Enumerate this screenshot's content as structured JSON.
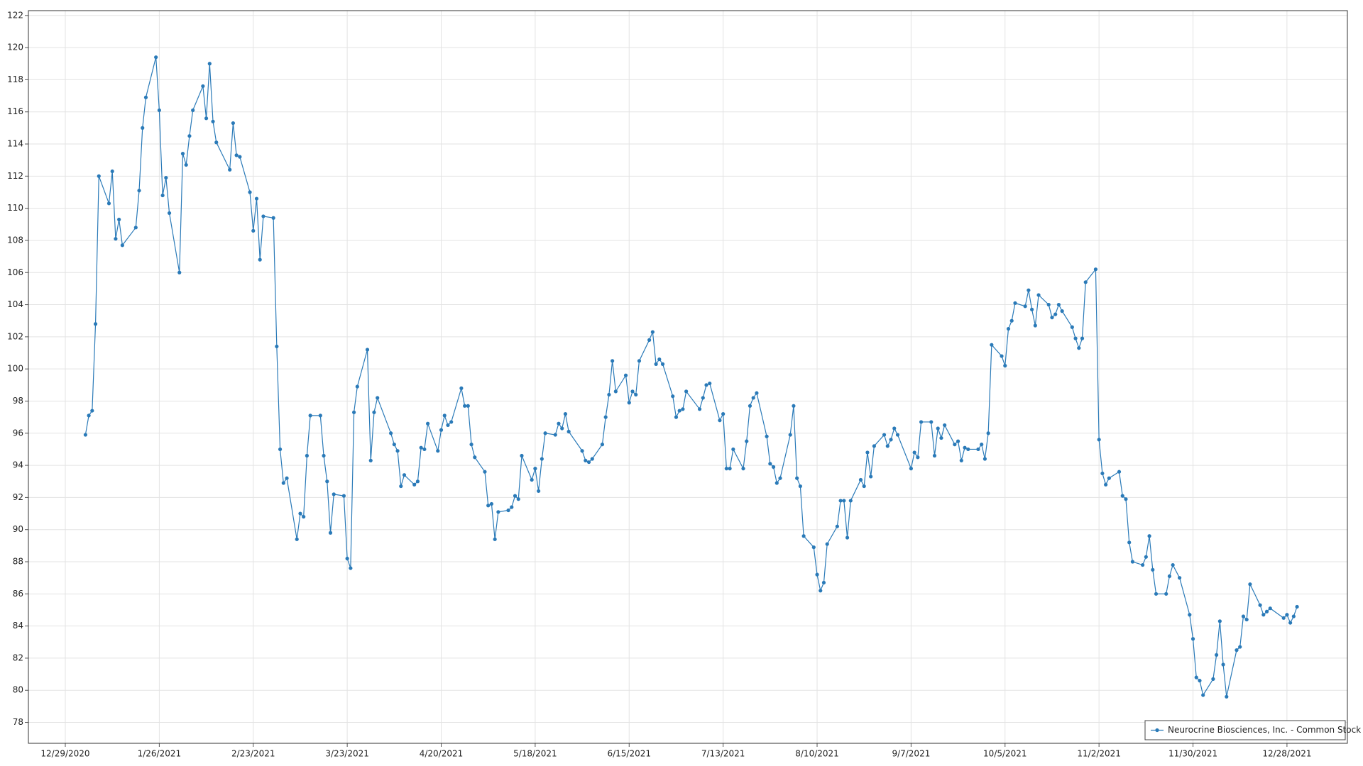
{
  "chart_data": {
    "type": "line",
    "x": [
      "2021-01-04",
      "2021-01-05",
      "2021-01-06",
      "2021-01-07",
      "2021-01-08",
      "2021-01-11",
      "2021-01-12",
      "2021-01-13",
      "2021-01-14",
      "2021-01-15",
      "2021-01-19",
      "2021-01-20",
      "2021-01-21",
      "2021-01-22",
      "2021-01-25",
      "2021-01-26",
      "2021-01-27",
      "2021-01-28",
      "2021-01-29",
      "2021-02-01",
      "2021-02-02",
      "2021-02-03",
      "2021-02-04",
      "2021-02-05",
      "2021-02-08",
      "2021-02-09",
      "2021-02-10",
      "2021-02-11",
      "2021-02-12",
      "2021-02-16",
      "2021-02-17",
      "2021-02-18",
      "2021-02-19",
      "2021-02-22",
      "2021-02-23",
      "2021-02-24",
      "2021-02-25",
      "2021-02-26",
      "2021-03-01",
      "2021-03-02",
      "2021-03-03",
      "2021-03-04",
      "2021-03-05",
      "2021-03-08",
      "2021-03-09",
      "2021-03-10",
      "2021-03-11",
      "2021-03-12",
      "2021-03-15",
      "2021-03-16",
      "2021-03-17",
      "2021-03-18",
      "2021-03-19",
      "2021-03-22",
      "2021-03-23",
      "2021-03-24",
      "2021-03-25",
      "2021-03-26",
      "2021-03-29",
      "2021-03-30",
      "2021-03-31",
      "2021-04-01",
      "2021-04-05",
      "2021-04-06",
      "2021-04-07",
      "2021-04-08",
      "2021-04-09",
      "2021-04-12",
      "2021-04-13",
      "2021-04-14",
      "2021-04-15",
      "2021-04-16",
      "2021-04-19",
      "2021-04-20",
      "2021-04-21",
      "2021-04-22",
      "2021-04-23",
      "2021-04-26",
      "2021-04-27",
      "2021-04-28",
      "2021-04-29",
      "2021-04-30",
      "2021-05-03",
      "2021-05-04",
      "2021-05-05",
      "2021-05-06",
      "2021-05-07",
      "2021-05-10",
      "2021-05-11",
      "2021-05-12",
      "2021-05-13",
      "2021-05-14",
      "2021-05-17",
      "2021-05-18",
      "2021-05-19",
      "2021-05-20",
      "2021-05-21",
      "2021-05-24",
      "2021-05-25",
      "2021-05-26",
      "2021-05-27",
      "2021-05-28",
      "2021-06-01",
      "2021-06-02",
      "2021-06-03",
      "2021-06-04",
      "2021-06-07",
      "2021-06-08",
      "2021-06-09",
      "2021-06-10",
      "2021-06-11",
      "2021-06-14",
      "2021-06-15",
      "2021-06-16",
      "2021-06-17",
      "2021-06-18",
      "2021-06-21",
      "2021-06-22",
      "2021-06-23",
      "2021-06-24",
      "2021-06-25",
      "2021-06-28",
      "2021-06-29",
      "2021-06-30",
      "2021-07-01",
      "2021-07-02",
      "2021-07-06",
      "2021-07-07",
      "2021-07-08",
      "2021-07-09",
      "2021-07-12",
      "2021-07-13",
      "2021-07-14",
      "2021-07-15",
      "2021-07-16",
      "2021-07-19",
      "2021-07-20",
      "2021-07-21",
      "2021-07-22",
      "2021-07-23",
      "2021-07-26",
      "2021-07-27",
      "2021-07-28",
      "2021-07-29",
      "2021-07-30",
      "2021-08-02",
      "2021-08-03",
      "2021-08-04",
      "2021-08-05",
      "2021-08-06",
      "2021-08-09",
      "2021-08-10",
      "2021-08-11",
      "2021-08-12",
      "2021-08-13",
      "2021-08-16",
      "2021-08-17",
      "2021-08-18",
      "2021-08-19",
      "2021-08-20",
      "2021-08-23",
      "2021-08-24",
      "2021-08-25",
      "2021-08-26",
      "2021-08-27",
      "2021-08-30",
      "2021-08-31",
      "2021-09-01",
      "2021-09-02",
      "2021-09-03",
      "2021-09-07",
      "2021-09-08",
      "2021-09-09",
      "2021-09-10",
      "2021-09-13",
      "2021-09-14",
      "2021-09-15",
      "2021-09-16",
      "2021-09-17",
      "2021-09-20",
      "2021-09-21",
      "2021-09-22",
      "2021-09-23",
      "2021-09-24",
      "2021-09-27",
      "2021-09-28",
      "2021-09-29",
      "2021-09-30",
      "2021-10-01",
      "2021-10-04",
      "2021-10-05",
      "2021-10-06",
      "2021-10-07",
      "2021-10-08",
      "2021-10-11",
      "2021-10-12",
      "2021-10-13",
      "2021-10-14",
      "2021-10-15",
      "2021-10-18",
      "2021-10-19",
      "2021-10-20",
      "2021-10-21",
      "2021-10-22",
      "2021-10-25",
      "2021-10-26",
      "2021-10-27",
      "2021-10-28",
      "2021-10-29",
      "2021-11-01",
      "2021-11-02",
      "2021-11-03",
      "2021-11-04",
      "2021-11-05",
      "2021-11-08",
      "2021-11-09",
      "2021-11-10",
      "2021-11-11",
      "2021-11-12",
      "2021-11-15",
      "2021-11-16",
      "2021-11-17",
      "2021-11-18",
      "2021-11-19",
      "2021-11-22",
      "2021-11-23",
      "2021-11-24",
      "2021-11-26",
      "2021-11-29",
      "2021-11-30",
      "2021-12-01",
      "2021-12-02",
      "2021-12-03",
      "2021-12-06",
      "2021-12-07",
      "2021-12-08",
      "2021-12-09",
      "2021-12-10",
      "2021-12-13",
      "2021-12-14",
      "2021-12-15",
      "2021-12-16",
      "2021-12-17",
      "2021-12-20",
      "2021-12-21",
      "2021-12-22",
      "2021-12-23",
      "2021-12-27",
      "2021-12-28",
      "2021-12-29",
      "2021-12-30",
      "2021-12-31"
    ],
    "series": [
      {
        "name": "Neurocrine Biosciences, Inc. - Common Stock",
        "color": "#2a7ab8",
        "values": [
          95.9,
          97.1,
          97.4,
          102.8,
          112.0,
          110.3,
          112.3,
          108.1,
          109.3,
          107.7,
          108.8,
          111.1,
          115.0,
          116.9,
          119.4,
          116.1,
          110.8,
          111.9,
          109.7,
          106.0,
          113.4,
          112.7,
          114.5,
          116.1,
          117.6,
          115.6,
          119.0,
          115.4,
          114.1,
          112.4,
          115.3,
          113.3,
          113.2,
          111.0,
          108.6,
          110.6,
          106.8,
          109.5,
          109.4,
          101.4,
          95.0,
          92.9,
          93.2,
          89.4,
          91.0,
          90.8,
          94.6,
          97.1,
          97.1,
          94.6,
          93.0,
          89.8,
          92.2,
          92.1,
          88.2,
          87.6,
          97.3,
          98.9,
          101.2,
          94.3,
          97.3,
          98.2,
          96.0,
          95.3,
          94.9,
          92.7,
          93.4,
          92.8,
          93.0,
          95.1,
          95.0,
          96.6,
          94.9,
          96.2,
          97.1,
          96.5,
          96.7,
          98.8,
          97.7,
          97.7,
          95.3,
          94.5,
          93.6,
          91.5,
          91.6,
          89.4,
          91.1,
          91.2,
          91.4,
          92.1,
          91.9,
          94.6,
          93.1,
          93.8,
          92.4,
          94.4,
          96.0,
          95.9,
          96.6,
          96.3,
          97.2,
          96.1,
          94.9,
          94.3,
          94.2,
          94.4,
          95.3,
          97.0,
          98.4,
          100.5,
          98.6,
          99.6,
          97.9,
          98.6,
          98.4,
          100.5,
          101.8,
          102.3,
          100.3,
          100.6,
          100.3,
          98.3,
          97.0,
          97.4,
          97.5,
          98.6,
          97.5,
          98.2,
          99.0,
          99.1,
          96.8,
          97.2,
          93.8,
          93.8,
          95.0,
          93.8,
          95.5,
          97.7,
          98.2,
          98.5,
          95.8,
          94.1,
          93.9,
          92.9,
          93.2,
          95.9,
          97.7,
          93.2,
          92.7,
          89.6,
          88.9,
          87.2,
          86.2,
          86.7,
          89.1,
          90.2,
          91.8,
          91.8,
          89.5,
          91.8,
          93.1,
          92.7,
          94.8,
          93.3,
          95.2,
          95.9,
          95.2,
          95.6,
          96.3,
          95.9,
          93.8,
          94.8,
          94.5,
          96.7,
          96.7,
          94.6,
          96.3,
          95.7,
          96.5,
          95.3,
          95.5,
          94.3,
          95.1,
          95.0,
          95.0,
          95.3,
          94.4,
          96.0,
          101.5,
          100.8,
          100.2,
          102.5,
          103.0,
          104.1,
          103.9,
          104.9,
          103.7,
          102.7,
          104.6,
          104.0,
          103.2,
          103.4,
          104.0,
          103.6,
          102.6,
          101.9,
          101.3,
          101.9,
          105.4,
          106.2,
          95.6,
          93.5,
          92.8,
          93.2,
          93.6,
          92.1,
          91.9,
          89.2,
          88.0,
          87.8,
          88.3,
          89.6,
          87.5,
          86.0,
          86.0,
          87.1,
          87.8,
          87.0,
          84.7,
          83.2,
          80.8,
          80.6,
          79.7,
          80.7,
          82.2,
          84.3,
          81.6,
          79.6,
          82.5,
          82.7,
          84.6,
          84.4,
          86.6,
          85.3,
          84.7,
          84.9,
          85.1,
          84.5,
          84.7,
          84.2,
          84.6,
          85.2
        ]
      }
    ],
    "xlim": [
      "2020-12-18",
      "2022-01-15"
    ],
    "xticks": [
      {
        "value": "2020-12-29",
        "label": "12/29/2020"
      },
      {
        "value": "2021-01-26",
        "label": "1/26/2021"
      },
      {
        "value": "2021-02-23",
        "label": "2/23/2021"
      },
      {
        "value": "2021-03-23",
        "label": "3/23/2021"
      },
      {
        "value": "2021-04-20",
        "label": "4/20/2021"
      },
      {
        "value": "2021-05-18",
        "label": "5/18/2021"
      },
      {
        "value": "2021-06-15",
        "label": "6/15/2021"
      },
      {
        "value": "2021-07-13",
        "label": "7/13/2021"
      },
      {
        "value": "2021-08-10",
        "label": "8/10/2021"
      },
      {
        "value": "2021-09-07",
        "label": "9/7/2021"
      },
      {
        "value": "2021-10-05",
        "label": "10/5/2021"
      },
      {
        "value": "2021-11-02",
        "label": "11/2/2021"
      },
      {
        "value": "2021-11-30",
        "label": "11/30/2021"
      },
      {
        "value": "2021-12-28",
        "label": "12/28/2021"
      }
    ],
    "ylim": [
      76.7,
      122.3
    ],
    "yticks": [
      78,
      80,
      82,
      84,
      86,
      88,
      90,
      92,
      94,
      96,
      98,
      100,
      102,
      104,
      106,
      108,
      110,
      112,
      114,
      116,
      118,
      120,
      122
    ],
    "grid": true,
    "legend_position": "lower right"
  }
}
